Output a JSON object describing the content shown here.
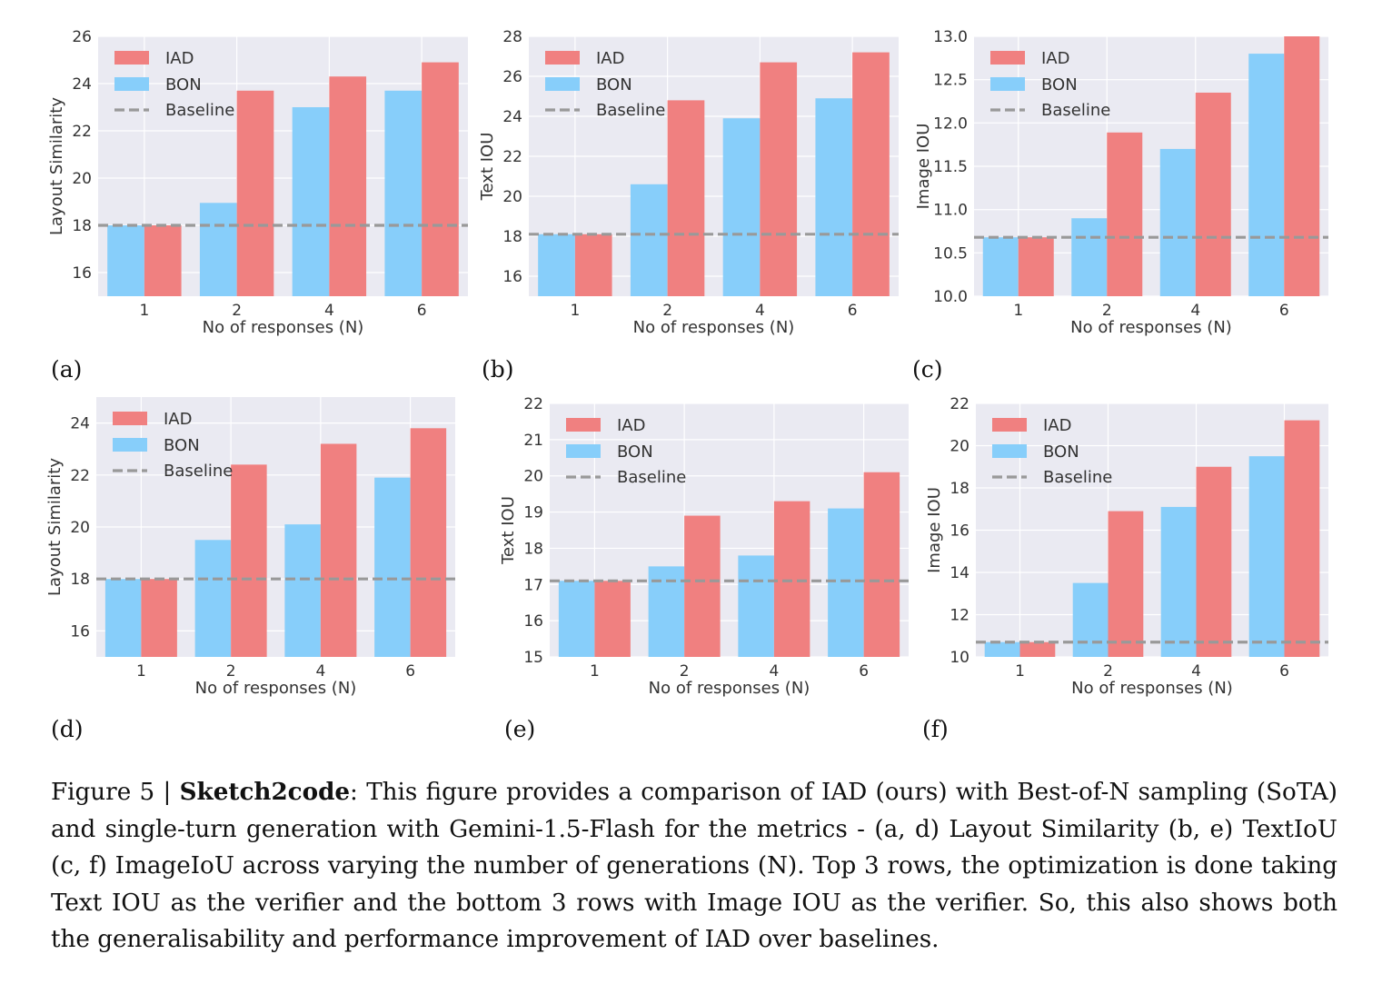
{
  "colors": {
    "iad": "#f08080",
    "bon": "#87cefa",
    "baseline": "#999999",
    "plot_bg": "#eaeaf2",
    "grid": "#ffffff"
  },
  "legend": {
    "iad": "IAD",
    "bon": "BON",
    "baseline": "Baseline"
  },
  "chart_data": [
    {
      "type": "bar",
      "label": "(a)",
      "categories": [
        "1",
        "2",
        "4",
        "6"
      ],
      "series": [
        {
          "name": "BON",
          "values": [
            18.0,
            18.95,
            23.0,
            23.7
          ]
        },
        {
          "name": "IAD",
          "values": [
            18.0,
            23.7,
            24.3,
            24.9
          ]
        }
      ],
      "baseline": 18.0,
      "xlabel": "No of responses (N)",
      "ylabel": "Layout Similarity",
      "ylim": [
        15,
        26
      ],
      "yticks": [
        "16",
        "18",
        "20",
        "22",
        "24",
        "26"
      ],
      "yticks_values": [
        16,
        18,
        20,
        22,
        24,
        26
      ],
      "grid": true,
      "legend_position": "top-left"
    },
    {
      "type": "bar",
      "label": "(b)",
      "categories": [
        "1",
        "2",
        "4",
        "6"
      ],
      "series": [
        {
          "name": "BON",
          "values": [
            18.1,
            20.6,
            23.9,
            24.9
          ]
        },
        {
          "name": "IAD",
          "values": [
            18.1,
            24.8,
            26.7,
            27.2
          ]
        }
      ],
      "baseline": 18.1,
      "xlabel": "No of responses (N)",
      "ylabel": "Text IOU",
      "ylim": [
        15,
        28
      ],
      "yticks": [
        "16",
        "18",
        "20",
        "22",
        "24",
        "26",
        "28"
      ],
      "yticks_values": [
        16,
        18,
        20,
        22,
        24,
        26,
        28
      ],
      "grid": true,
      "legend_position": "top-left"
    },
    {
      "type": "bar",
      "label": "(c)",
      "categories": [
        "1",
        "2",
        "4",
        "6"
      ],
      "series": [
        {
          "name": "BON",
          "values": [
            10.68,
            10.9,
            11.7,
            12.8
          ]
        },
        {
          "name": "IAD",
          "values": [
            10.68,
            11.89,
            12.35,
            13.0
          ]
        }
      ],
      "baseline": 10.68,
      "xlabel": "No of responses (N)",
      "ylabel": "Image IOU",
      "ylim": [
        10.0,
        13.0
      ],
      "yticks": [
        "10.0",
        "10.5",
        "11.0",
        "11.5",
        "12.0",
        "12.5",
        "13.0"
      ],
      "yticks_values": [
        10.0,
        10.5,
        11.0,
        11.5,
        12.0,
        12.5,
        13.0
      ],
      "grid": true,
      "legend_position": "top-left"
    },
    {
      "type": "bar",
      "label": "(d)",
      "categories": [
        "1",
        "2",
        "4",
        "6"
      ],
      "series": [
        {
          "name": "BON",
          "values": [
            18.0,
            19.5,
            20.1,
            21.9
          ]
        },
        {
          "name": "IAD",
          "values": [
            18.0,
            22.4,
            23.2,
            23.8
          ]
        }
      ],
      "baseline": 18.0,
      "xlabel": "No of responses (N)",
      "ylabel": "Layout Similarity",
      "ylim": [
        15,
        25
      ],
      "yticks": [
        "16",
        "18",
        "20",
        "22",
        "24"
      ],
      "yticks_values": [
        16,
        18,
        20,
        22,
        24
      ],
      "grid": true,
      "legend_position": "top-left"
    },
    {
      "type": "bar",
      "label": "(e)",
      "categories": [
        "1",
        "2",
        "4",
        "6"
      ],
      "series": [
        {
          "name": "BON",
          "values": [
            17.1,
            17.5,
            17.8,
            19.1
          ]
        },
        {
          "name": "IAD",
          "values": [
            17.1,
            18.9,
            19.3,
            20.1
          ]
        }
      ],
      "baseline": 17.1,
      "xlabel": "No of responses (N)",
      "ylabel": "Text IOU",
      "ylim": [
        15,
        22
      ],
      "yticks": [
        "15",
        "16",
        "17",
        "18",
        "19",
        "20",
        "21",
        "22"
      ],
      "yticks_values": [
        15,
        16,
        17,
        18,
        19,
        20,
        21,
        22
      ],
      "grid": true,
      "legend_position": "top-left"
    },
    {
      "type": "bar",
      "label": "(f)",
      "categories": [
        "1",
        "2",
        "4",
        "6"
      ],
      "series": [
        {
          "name": "BON",
          "values": [
            10.7,
            13.5,
            17.1,
            19.5
          ]
        },
        {
          "name": "IAD",
          "values": [
            10.7,
            16.9,
            19.0,
            21.2
          ]
        }
      ],
      "baseline": 10.7,
      "xlabel": "No of responses (N)",
      "ylabel": "Image IOU",
      "ylim": [
        10,
        22
      ],
      "yticks": [
        "10",
        "12",
        "14",
        "16",
        "18",
        "20",
        "22"
      ],
      "yticks_values": [
        10,
        12,
        14,
        16,
        18,
        20,
        22
      ],
      "grid": true,
      "legend_position": "top-left"
    }
  ],
  "caption": {
    "prefix": "Figure 5 | ",
    "bold": "Sketch2code",
    "text": ": This figure provides a comparison of IAD (ours) with Best-of-N sampling (SoTA) and single-turn generation with Gemini-1.5-Flash for the metrics - (a, d) Layout Similarity (b, e) TextIoU (c, f) ImageIoU across varying the number of generations (N). Top 3 rows, the optimization is done taking Text IOU as the verifier and the bottom 3 rows with Image IOU as the verifier. So, this also shows both the generalisability and performance improvement of IAD over baselines."
  }
}
